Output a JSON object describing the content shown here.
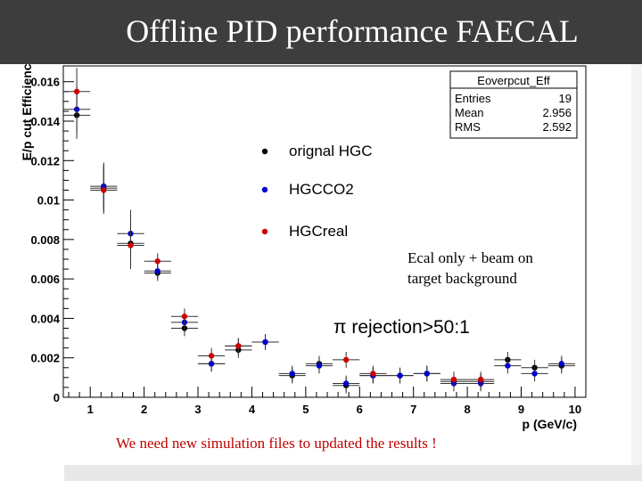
{
  "slide": {
    "title": "Offline PID performance FAECAL",
    "note_background": "Ecal only + beam on target background",
    "note_rejection": "π rejection>50:1",
    "note_update": "We need new simulation files to updated the results !"
  },
  "colors": {
    "title_bar": "#3d3d3d",
    "series_black": "#000000",
    "series_blue": "#0000cc",
    "series_red": "#cc0000",
    "note_red": "#c00000"
  },
  "chart_data": {
    "type": "scatter",
    "ylabel": "E/p cut Efficiency",
    "xlabel": "p (GeV/c)",
    "xlim": [
      0.5,
      10.2
    ],
    "ylim": [
      0,
      0.0168
    ],
    "xticks": [
      "1",
      "2",
      "3",
      "4",
      "5",
      "6",
      "7",
      "8",
      "9",
      "10"
    ],
    "yticks": [
      "0",
      "0.002",
      "0.004",
      "0.006",
      "0.008",
      "0.01",
      "0.012",
      "0.014",
      "0.016"
    ],
    "stats_box": {
      "name": "Eoverpcut_Eff",
      "rows": [
        {
          "label": "Entries",
          "value": "19"
        },
        {
          "label": "Mean",
          "value": "2.956"
        },
        {
          "label": "RMS",
          "value": "2.592"
        }
      ]
    },
    "legend_position": "top-center",
    "series": [
      {
        "name": "orignal HGC",
        "color": "#000000",
        "x": [
          0.75,
          1.25,
          1.75,
          2.25,
          2.75,
          3.25,
          3.75,
          4.25,
          4.75,
          5.25,
          5.75,
          6.25,
          6.75,
          7.25,
          7.75,
          8.25,
          8.75,
          9.25,
          9.75
        ],
        "y": [
          0.0143,
          0.0106,
          0.0078,
          0.0063,
          0.0035,
          0.0017,
          0.0024,
          0.0028,
          0.0011,
          0.0017,
          0.0006,
          0.0011,
          0.0011,
          0.0012,
          0.0008,
          0.0008,
          0.0019,
          0.0015,
          0.0016
        ]
      },
      {
        "name": "HGCCO2",
        "color": "#0000cc",
        "x": [
          0.75,
          1.25,
          1.75,
          2.25,
          2.75,
          3.25,
          3.75,
          4.25,
          4.75,
          5.25,
          5.75,
          6.25,
          6.75,
          7.25,
          7.75,
          8.25,
          8.75,
          9.25,
          9.75
        ],
        "y": [
          0.0146,
          0.0107,
          0.0083,
          0.0064,
          0.0038,
          0.0017,
          0.0026,
          0.0028,
          0.0012,
          0.0016,
          0.0007,
          0.0011,
          0.0011,
          0.0012,
          0.0007,
          0.0007,
          0.0016,
          0.0012,
          0.0017
        ]
      },
      {
        "name": "HGCreal",
        "color": "#cc0000",
        "x": [
          0.75,
          1.25,
          1.75,
          2.25,
          2.75,
          3.25,
          3.75,
          5.75,
          6.25,
          7.75,
          8.25
        ],
        "y": [
          0.0155,
          0.0105,
          0.0077,
          0.0069,
          0.0041,
          0.0021,
          0.0026,
          0.0019,
          0.0012,
          0.0009,
          0.0009
        ]
      }
    ]
  }
}
